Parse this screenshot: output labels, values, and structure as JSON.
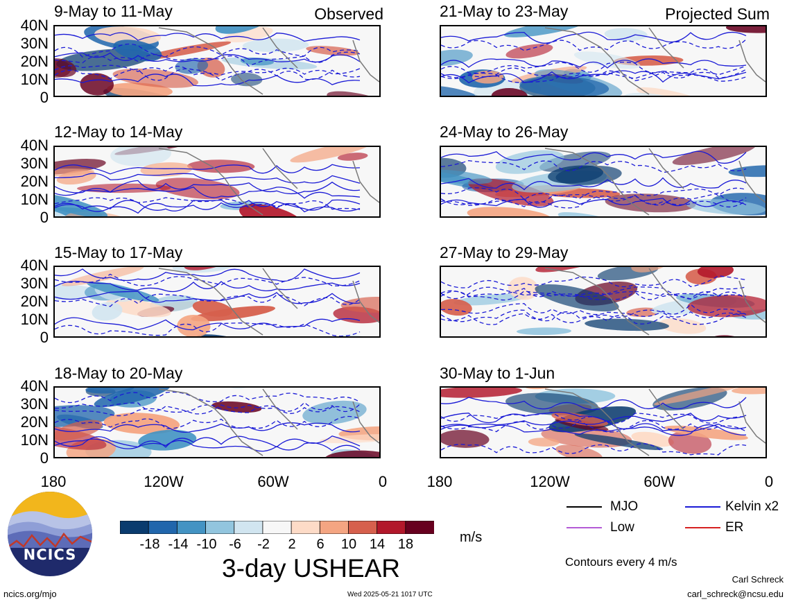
{
  "panels_left": [
    {
      "title": "9-May to 11-May",
      "corner": "Observed"
    },
    {
      "title": "12-May to 14-May",
      "corner": ""
    },
    {
      "title": "15-May to 17-May",
      "corner": ""
    },
    {
      "title": "18-May to 20-May",
      "corner": ""
    }
  ],
  "panels_right": [
    {
      "title": "21-May to 23-May",
      "corner": "Projected Sum"
    },
    {
      "title": "24-May to 26-May",
      "corner": ""
    },
    {
      "title": "27-May to 29-May",
      "corner": ""
    },
    {
      "title": "30-May to 1-Jun",
      "corner": ""
    }
  ],
  "lat_labels": [
    "40N",
    "30N",
    "20N",
    "10N",
    "0"
  ],
  "lon_labels": [
    "180",
    "120W",
    "60W",
    "0"
  ],
  "colorbar": {
    "labels": [
      "-18",
      "-14",
      "-10",
      "-6",
      "-2",
      "2",
      "6",
      "10",
      "14",
      "18"
    ],
    "colors": [
      "#0a3b6e",
      "#2166ac",
      "#4393c3",
      "#92c5de",
      "#d1e5f0",
      "#f7f7f7",
      "#fddbc7",
      "#f4a582",
      "#d6604d",
      "#b2182b",
      "#67001f"
    ],
    "units": "m/s"
  },
  "title": "3-day USHEAR",
  "legend": {
    "mjo": "MJO",
    "kelvin": "Kelvin x2",
    "low": "Low",
    "er": "ER",
    "contours_note": "Contours every 4 m/s"
  },
  "logo_text": "NCICS",
  "footer": {
    "url": "ncics.org/mjo",
    "timestamp": "Wed 2025-05-21 1017 UTC",
    "author": "Carl Schreck",
    "email": "carl_schreck@ncsu.edu"
  }
}
